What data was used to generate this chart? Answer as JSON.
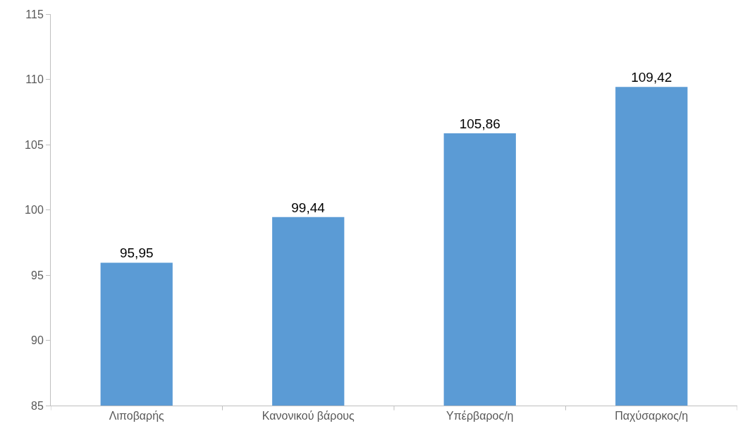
{
  "chart_data": {
    "type": "bar",
    "categories": [
      "Λιποβαρής",
      "Κανονικού βάρους",
      "Υπέρβαρος/η",
      "Παχύσαρκος/η"
    ],
    "values": [
      95.95,
      99.44,
      105.86,
      109.42
    ],
    "value_labels": [
      "95,95",
      "99,44",
      "105,86",
      "109,42"
    ],
    "color": "#5b9bd5",
    "ylim": [
      85,
      115
    ],
    "yticks": [
      85,
      90,
      95,
      100,
      105,
      110,
      115
    ],
    "grid": false
  }
}
